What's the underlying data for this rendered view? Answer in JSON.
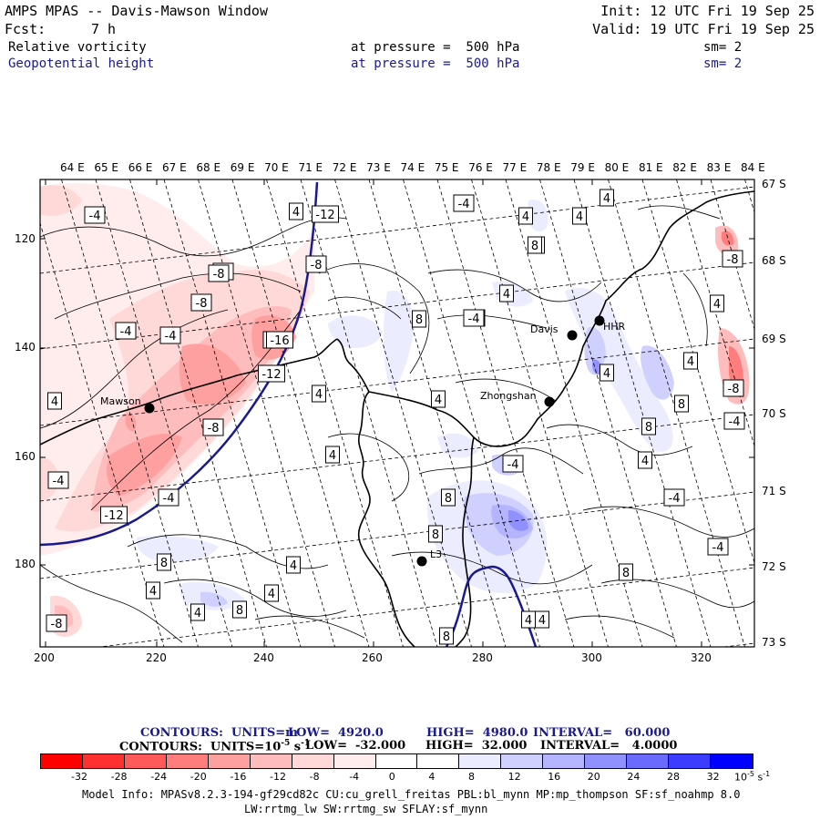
{
  "header": {
    "title": "AMPS MPAS -- Davis-Mawson Window",
    "init": "Init: 12 UTC Fri 19 Sep 25",
    "fcst_label": "Fcst:",
    "fcst_value": "7 h",
    "valid": "Valid: 19 UTC Fri 19 Sep 25",
    "field1": {
      "name": "Relative vorticity",
      "pressure": "at pressure =  500 hPa",
      "sm": "sm= 2"
    },
    "field2": {
      "name": "Geopotential height",
      "pressure": "at pressure =  500 hPa",
      "sm": "sm= 2"
    }
  },
  "top_longitudes": [
    "64 E",
    "65 E",
    "66 E",
    "67 E",
    "68 E",
    "69 E",
    "70 E",
    "71 E",
    "72 E",
    "73 E",
    "74 E",
    "75 E",
    "76 E",
    "77 E",
    "78 E",
    "79 E",
    "80 E",
    "81 E",
    "82 E",
    "83 E",
    "84 E"
  ],
  "right_latitudes": [
    "67 S",
    "68 S",
    "69 S",
    "70 S",
    "71 S",
    "72 S",
    "73 S"
  ],
  "left_ticks": [
    "120",
    "140",
    "160",
    "180"
  ],
  "bottom_ticks": [
    "200",
    "220",
    "240",
    "260",
    "280",
    "300",
    "320"
  ],
  "stations": [
    {
      "name": "Mawson"
    },
    {
      "name": "Davis"
    },
    {
      "name": "HHR"
    },
    {
      "name": "Zhongshan"
    },
    {
      "name": "L3"
    }
  ],
  "contour_labels": [
    "-4",
    "-4",
    "-4",
    "-8",
    "-4",
    "-4",
    "-16",
    "-12",
    "-8",
    "-12",
    "-4",
    "-8",
    "-4",
    "-4",
    "-4",
    "-4",
    "-12",
    "-8",
    "-8",
    "4",
    "8",
    "4",
    "4",
    "4",
    "8",
    "4",
    "8",
    "4",
    "8",
    "8",
    "4",
    "8",
    "4",
    "4",
    "4",
    "8",
    "4",
    "8",
    "4",
    "4",
    "-4",
    "-8",
    "-4",
    "-4",
    "-4",
    "8",
    "4",
    "8",
    "4",
    "8",
    "4",
    "4",
    "8",
    "4",
    "4",
    "-8",
    "4"
  ],
  "legend": {
    "line1": {
      "contours": "CONTOURS:  UNITS=m",
      "low": "LOW=  4920.0",
      "high": "HIGH=  4980.0",
      "interval": "INTERVAL=   60.000"
    },
    "line2": {
      "contours": "CONTOURS:  UNITS=10",
      "exp": "-5",
      "s": " s",
      "sexp": "-1",
      "low": "LOW=  -32.000",
      "high": "HIGH=  32.000",
      "interval": "INTERVAL=   4.0000"
    },
    "colorbar_labels": [
      "-32",
      "-28",
      "-24",
      "-20",
      "-16",
      "-12",
      "-8",
      "-4",
      "0",
      "4",
      "8",
      "12",
      "16",
      "20",
      "24",
      "28",
      "32"
    ],
    "colorbar_unit": "10",
    "colorbar_unit_exp": "-5",
    "colorbar_unit_s": " s",
    "colorbar_unit_sexp": "-1",
    "colors": [
      "#ff0000",
      "#ff3030",
      "#ff5a5a",
      "#ff7d7d",
      "#ffa0a0",
      "#ffbcbc",
      "#ffd8d8",
      "#ffecec",
      "#ffffff",
      "#ffffff",
      "#ececff",
      "#d0d0ff",
      "#b4b4ff",
      "#9090ff",
      "#6a6aff",
      "#3c3cff",
      "#0000ff"
    ]
  },
  "model_info": {
    "line1": "Model Info: MPASv8.2.3-194-gf29cd82c CU:cu_grell_freitas PBL:bl_mynn MP:mp_thompson SF:sf_noahmp 8.0",
    "line2": "LW:rrtmg_lw SW:rrtmg_sw SFLAY:sf_mynn"
  }
}
